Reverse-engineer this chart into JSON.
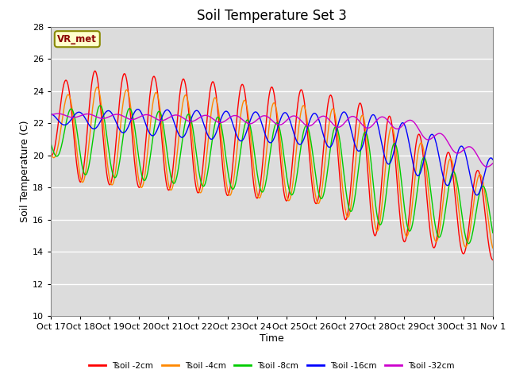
{
  "title": "Soil Temperature Set 3",
  "xlabel": "Time",
  "ylabel": "Soil Temperature (C)",
  "ylim": [
    10,
    28
  ],
  "xlim": [
    0,
    15
  ],
  "colors": {
    "2cm": "#ff0000",
    "4cm": "#ff8800",
    "8cm": "#00cc00",
    "16cm": "#0000ff",
    "32cm": "#cc00cc"
  },
  "legend_labels": [
    "Tsoil -2cm",
    "Tsoil -4cm",
    "Tsoil -8cm",
    "Tsoil -16cm",
    "Tsoil -32cm"
  ],
  "xtick_labels": [
    "Oct 17",
    "Oct 18",
    "Oct 19",
    "Oct 20",
    "Oct 21",
    "Oct 22",
    "Oct 23",
    "Oct 24",
    "Oct 25",
    "Oct 26",
    "Oct 27",
    "Oct 28",
    "Oct 29",
    "Oct 30",
    "Oct 31",
    "Nov 1"
  ],
  "annotation_text": "VR_met",
  "plot_bg_color": "#dcdcdc",
  "grid_color": "#ffffff",
  "title_fontsize": 12,
  "axis_label_fontsize": 9
}
